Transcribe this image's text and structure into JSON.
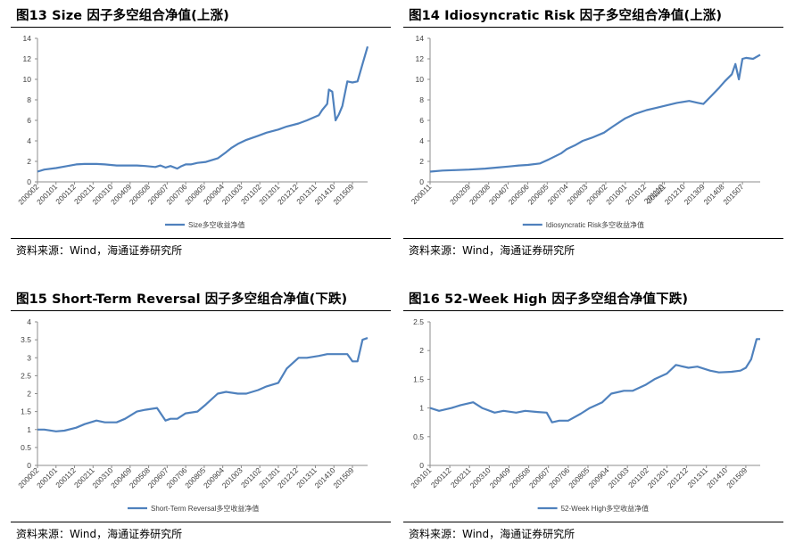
{
  "chart_data": [
    {
      "type": "line",
      "title": "图13  Size 因子多空组合净值(上涨)",
      "source": "资料来源：Wind，海通证券研究所",
      "legend": "Size多空收益净值",
      "color": "#4f81bd",
      "ylim": [
        0,
        14
      ],
      "yticks": [
        0,
        2,
        4,
        6,
        8,
        10,
        12,
        14
      ],
      "x_range": [
        "2000-02",
        "2016-06"
      ],
      "xticks": [
        "200002",
        "200101",
        "200112",
        "200211",
        "200310",
        "200409",
        "200508",
        "200607",
        "200706",
        "200805",
        "200904",
        "201003",
        "201102",
        "201201",
        "201212",
        "201311",
        "201410",
        "201509"
      ],
      "x": [
        "2000-02",
        "2000-06",
        "2001-01",
        "2001-06",
        "2002-01",
        "2002-06",
        "2003-01",
        "2003-06",
        "2004-01",
        "2004-06",
        "2005-01",
        "2005-06",
        "2005-12",
        "2006-03",
        "2006-06",
        "2006-09",
        "2007-01",
        "2007-03",
        "2007-06",
        "2007-09",
        "2008-01",
        "2008-06",
        "2009-01",
        "2009-06",
        "2009-09",
        "2010-01",
        "2010-06",
        "2011-01",
        "2011-06",
        "2012-01",
        "2012-06",
        "2013-01",
        "2013-06",
        "2014-01",
        "2014-03",
        "2014-06",
        "2014-07",
        "2014-09",
        "2014-11",
        "2015-01",
        "2015-03",
        "2015-06",
        "2015-09",
        "2015-12",
        "2016-03",
        "2016-06"
      ],
      "values": [
        1.0,
        1.2,
        1.35,
        1.5,
        1.7,
        1.75,
        1.75,
        1.7,
        1.6,
        1.6,
        1.6,
        1.55,
        1.45,
        1.6,
        1.4,
        1.55,
        1.3,
        1.5,
        1.7,
        1.7,
        1.85,
        1.95,
        2.3,
        2.9,
        3.3,
        3.7,
        4.1,
        4.5,
        4.8,
        5.1,
        5.4,
        5.7,
        6.0,
        6.5,
        7.0,
        7.6,
        9.0,
        8.8,
        6.0,
        6.6,
        7.4,
        9.8,
        9.7,
        9.8,
        11.5,
        13.2
      ]
    },
    {
      "type": "line",
      "title": "图14 Idiosyncratic Risk 因子多空组合净值(上涨)",
      "source": "资料来源：Wind，海通证券研究所",
      "legend": "Idiosyncratic Risk多空收益净值",
      "color": "#4f81bd",
      "ylim": [
        0,
        14
      ],
      "yticks": [
        0,
        2,
        4,
        6,
        8,
        10,
        12,
        14
      ],
      "x_range": [
        "2000-11",
        "2016-05"
      ],
      "xticks": [
        "200011",
        "201110",
        "200209",
        "200308",
        "200407",
        "200506",
        "200605",
        "200704",
        "200803",
        "200902",
        "201001",
        "201012",
        "201111",
        "201210",
        "201309",
        "201408",
        "201507"
      ],
      "x": [
        "2000-11",
        "2001-06",
        "2002-01",
        "2002-09",
        "2003-06",
        "2004-01",
        "2004-07",
        "2005-01",
        "2005-06",
        "2006-01",
        "2006-06",
        "2007-01",
        "2007-04",
        "2007-09",
        "2008-01",
        "2008-06",
        "2009-01",
        "2009-06",
        "2010-01",
        "2010-06",
        "2011-01",
        "2011-06",
        "2012-01",
        "2012-06",
        "2013-01",
        "2013-06",
        "2013-09",
        "2014-01",
        "2014-06",
        "2014-09",
        "2015-01",
        "2015-03",
        "2015-05",
        "2015-07",
        "2015-09",
        "2016-01",
        "2016-05"
      ],
      "values": [
        1.0,
        1.1,
        1.15,
        1.2,
        1.3,
        1.4,
        1.5,
        1.6,
        1.65,
        1.8,
        2.2,
        2.8,
        3.2,
        3.6,
        4.0,
        4.3,
        4.8,
        5.4,
        6.2,
        6.6,
        7.0,
        7.2,
        7.5,
        7.7,
        7.9,
        7.7,
        7.6,
        8.3,
        9.2,
        9.8,
        10.5,
        11.5,
        10.0,
        12.0,
        12.1,
        12.0,
        12.4
      ]
    },
    {
      "type": "line",
      "title": "图15 Short-Term Reversal 因子多空组合净值(下跌)",
      "source": "资料来源：Wind，海通证券研究所",
      "legend": "Short-Term Reversal多空收益净值",
      "color": "#4f81bd",
      "ylim": [
        0,
        4
      ],
      "yticks": [
        0,
        0.5,
        1,
        1.5,
        2,
        2.5,
        3,
        3.5,
        4
      ],
      "x_range": [
        "2000-02",
        "2016-06"
      ],
      "xticks": [
        "200002",
        "200101",
        "200112",
        "200211",
        "200310",
        "200409",
        "200508",
        "200607",
        "200706",
        "200805",
        "200904",
        "201003",
        "201102",
        "201201",
        "201212",
        "201311",
        "201410",
        "201509"
      ],
      "x": [
        "2000-02",
        "2000-06",
        "2001-01",
        "2001-06",
        "2002-01",
        "2002-06",
        "2003-01",
        "2003-06",
        "2004-01",
        "2004-06",
        "2005-01",
        "2005-06",
        "2006-01",
        "2006-06",
        "2006-09",
        "2007-01",
        "2007-06",
        "2008-01",
        "2008-06",
        "2009-01",
        "2009-06",
        "2010-01",
        "2010-06",
        "2011-01",
        "2011-06",
        "2012-01",
        "2012-06",
        "2013-01",
        "2013-06",
        "2014-01",
        "2014-06",
        "2015-01",
        "2015-06",
        "2015-09",
        "2015-12",
        "2016-03",
        "2016-06"
      ],
      "values": [
        1.0,
        1.0,
        0.95,
        0.97,
        1.05,
        1.15,
        1.25,
        1.2,
        1.2,
        1.3,
        1.5,
        1.55,
        1.6,
        1.25,
        1.3,
        1.3,
        1.45,
        1.5,
        1.7,
        2.0,
        2.05,
        2.0,
        2.0,
        2.1,
        2.2,
        2.3,
        2.7,
        3.0,
        3.0,
        3.05,
        3.1,
        3.1,
        3.1,
        2.9,
        2.9,
        3.5,
        3.55
      ]
    },
    {
      "type": "line",
      "title": "图16 52-Week High 因子多空组合净值下跌)",
      "source": "资料来源：Wind，海通证券研究所",
      "legend": "52-Week High多空收益净值",
      "color": "#4f81bd",
      "ylim": [
        0,
        2.5
      ],
      "yticks": [
        0,
        0.5,
        1,
        1.5,
        2,
        2.5
      ],
      "x_range": [
        "2001-01",
        "2016-05"
      ],
      "xticks": [
        "200101",
        "200112",
        "200211",
        "200310",
        "200409",
        "200508",
        "200607",
        "200706",
        "200805",
        "200904",
        "201003",
        "201102",
        "201201",
        "201212",
        "201311",
        "201410",
        "201509"
      ],
      "x": [
        "2001-01",
        "2001-06",
        "2002-01",
        "2002-06",
        "2003-01",
        "2003-06",
        "2004-01",
        "2004-06",
        "2005-01",
        "2005-06",
        "2006-01",
        "2006-06",
        "2006-09",
        "2007-01",
        "2007-06",
        "2008-01",
        "2008-06",
        "2009-01",
        "2009-06",
        "2010-01",
        "2010-06",
        "2011-01",
        "2011-06",
        "2012-01",
        "2012-06",
        "2013-01",
        "2013-06",
        "2014-01",
        "2014-06",
        "2015-01",
        "2015-06",
        "2015-09",
        "2015-12",
        "2016-03",
        "2016-05"
      ],
      "values": [
        1.0,
        0.95,
        1.0,
        1.05,
        1.1,
        1.0,
        0.92,
        0.95,
        0.92,
        0.95,
        0.93,
        0.92,
        0.75,
        0.78,
        0.78,
        0.9,
        1.0,
        1.1,
        1.25,
        1.3,
        1.3,
        1.4,
        1.5,
        1.6,
        1.75,
        1.7,
        1.72,
        1.65,
        1.62,
        1.63,
        1.65,
        1.7,
        1.85,
        2.2,
        2.2
      ]
    }
  ]
}
